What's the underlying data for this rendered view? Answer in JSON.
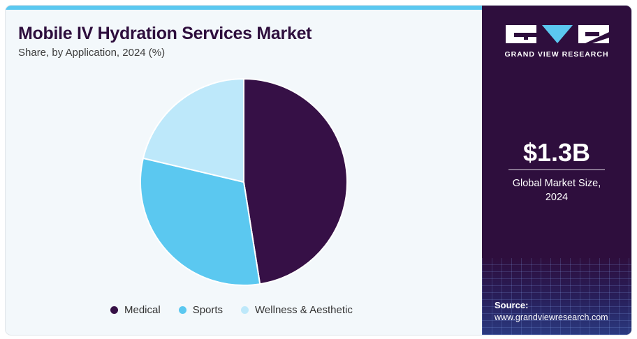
{
  "title": "Mobile IV Hydration Services Market",
  "subtitle": "Share, by Application, 2024 (%)",
  "colors": {
    "medical": "#361046",
    "sports": "#5bc8f0",
    "wellness": "#bde8fa",
    "panel": "#2e0e3d",
    "accent": "#5bc8f0"
  },
  "chart_data": {
    "type": "pie",
    "title": "Mobile IV Hydration Services Market",
    "subtitle": "Share, by Application, 2024 (%)",
    "categories": [
      "Medical",
      "Sports",
      "Wellness & Aesthetic"
    ],
    "values": [
      47.5,
      31.2,
      21.3
    ],
    "colors": [
      "#361046",
      "#5bc8f0",
      "#bde8fa"
    ],
    "start": "12 o'clock, clockwise",
    "legend": "bottom"
  },
  "legend": [
    "Medical",
    "Sports",
    "Wellness & Aesthetic"
  ],
  "brand": {
    "name": "GRAND VIEW RESEARCH"
  },
  "stat": {
    "value": "$1.3B",
    "line1": "Global Market Size,",
    "line2": "2024"
  },
  "source": {
    "label": "Source:",
    "url": "www.grandviewresearch.com"
  }
}
